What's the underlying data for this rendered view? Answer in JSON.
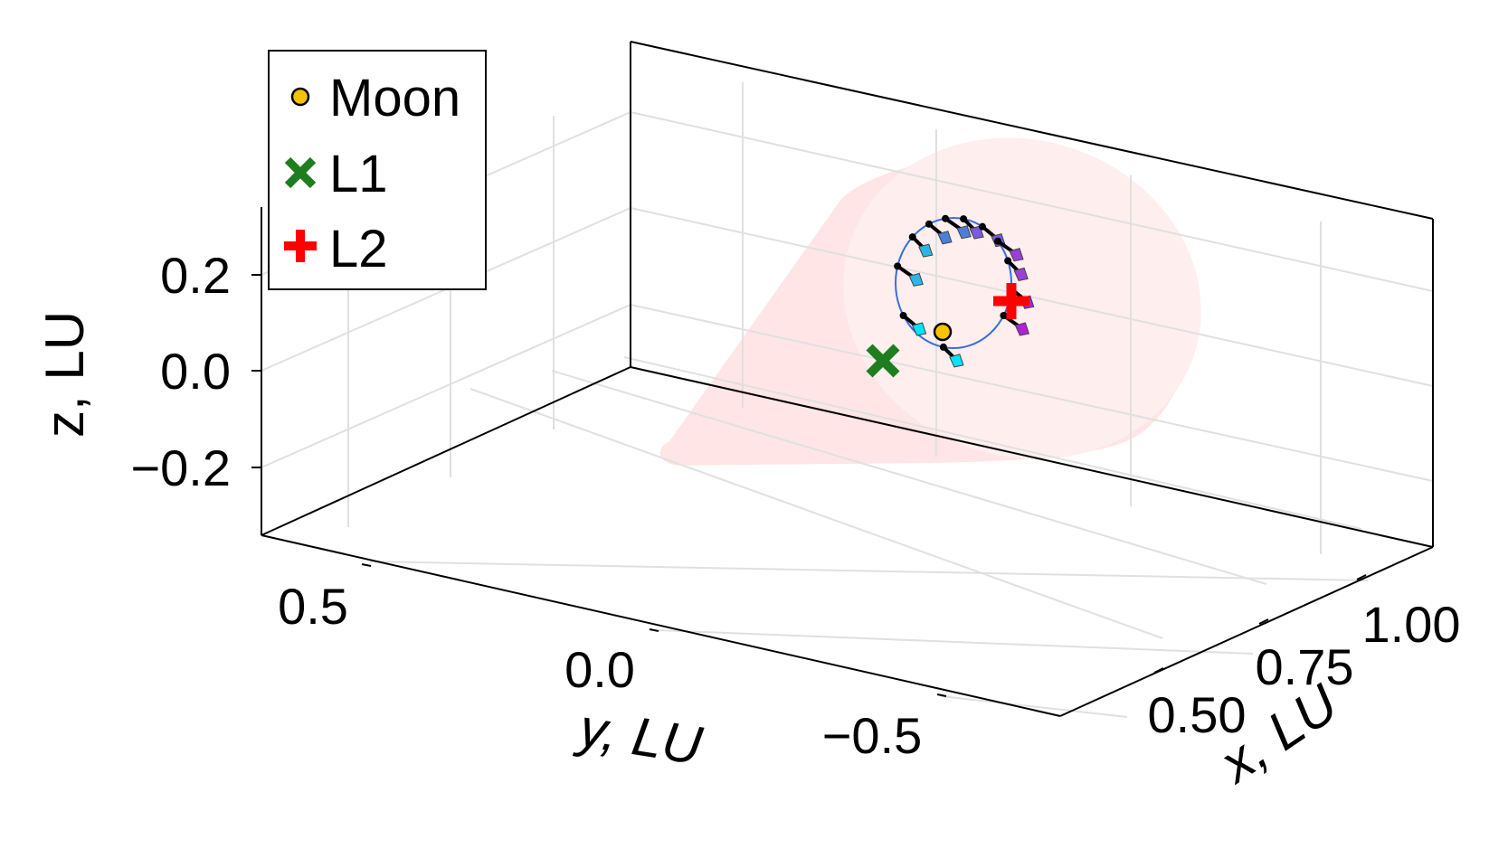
{
  "chart_data": {
    "type": "scatter",
    "projection": "3d",
    "title": "",
    "xlabel": "x, LU",
    "ylabel": "y, LU",
    "zlabel": "z, LU",
    "xlim": [
      0.35,
      1.1
    ],
    "ylim": [
      -0.85,
      0.75
    ],
    "zlim": [
      -0.35,
      0.35
    ],
    "x_ticks": [
      {
        "value": 0.5,
        "label": "0.50"
      },
      {
        "value": 0.75,
        "label": "0.75"
      },
      {
        "value": 1.0,
        "label": "1.00"
      }
    ],
    "y_ticks": [
      {
        "value": 0.5,
        "label": "0.5"
      },
      {
        "value": 0.0,
        "label": "0.0"
      },
      {
        "value": -0.5,
        "label": "−0.5"
      }
    ],
    "z_ticks": [
      {
        "value": 0.2,
        "label": "0.2"
      },
      {
        "value": 0.0,
        "label": "0.0"
      },
      {
        "value": -0.2,
        "label": "−0.2"
      }
    ],
    "grid": true,
    "legend_position": "top-left",
    "series": [
      {
        "name": "Moon",
        "marker": "circle",
        "color": "#f5c200",
        "points": [
          [
            0.99,
            0.0,
            0.0
          ]
        ]
      },
      {
        "name": "L1",
        "marker": "x",
        "color": "#1e7d1e",
        "points": [
          [
            0.84,
            0.0,
            0.0
          ]
        ]
      },
      {
        "name": "L2",
        "marker": "cross",
        "color": "#ff0000",
        "points": [
          [
            1.16,
            0.0,
            0.0
          ]
        ]
      }
    ],
    "orbit": {
      "color": "#3a6fd8",
      "type": "halo"
    },
    "shadow_cone": {
      "color": "#ffe5e5"
    },
    "arrow_colors": [
      "#00e5ff",
      "#2bb5e8",
      "#4a7fd8",
      "#7a5ae0",
      "#9a3fd8",
      "#b020d8"
    ]
  }
}
